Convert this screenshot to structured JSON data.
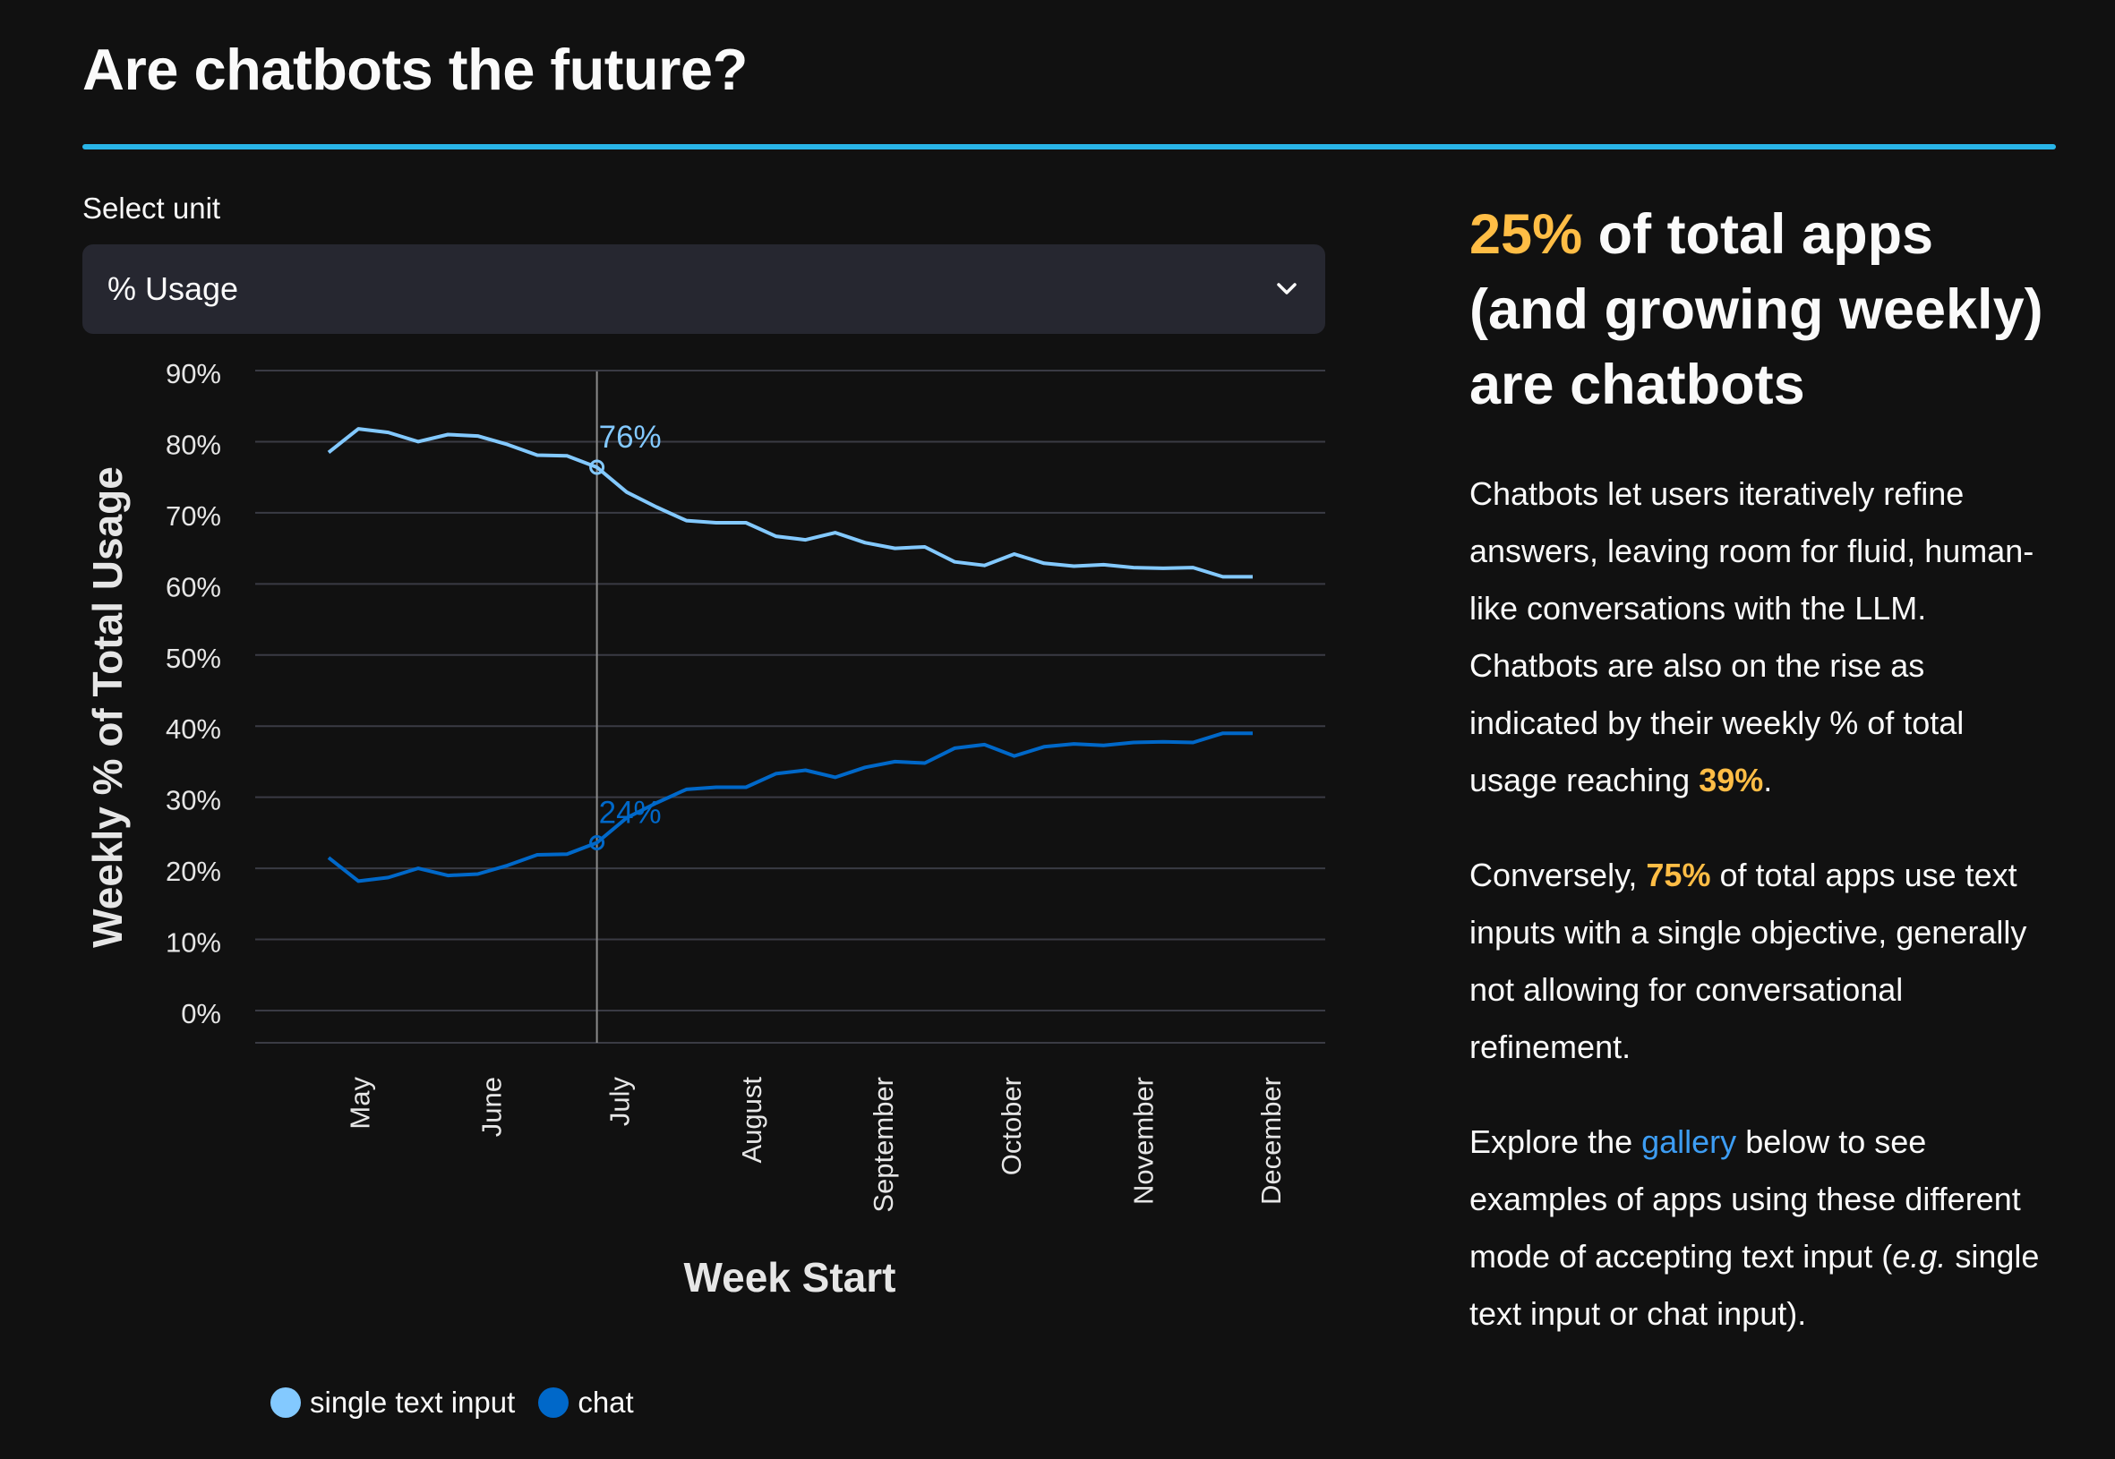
{
  "header": {
    "title": "Are chatbots the future?"
  },
  "select_unit": {
    "label": "Select unit",
    "value": "% Usage"
  },
  "colors": {
    "accent": "#ffbd45",
    "divider": "#29b5e8",
    "single_text_input": "#83c9ff",
    "chat": "#0068c9",
    "link": "#3d9df3"
  },
  "chart_data": {
    "type": "line",
    "xlabel": "Week Start",
    "ylabel": "Weekly % of Total Usage",
    "ylim": [
      0,
      90
    ],
    "y_ticks": [
      "0%",
      "10%",
      "20%",
      "30%",
      "40%",
      "50%",
      "60%",
      "70%",
      "80%",
      "90%"
    ],
    "x_ticks": [
      "May",
      "June",
      "July",
      "August",
      "September",
      "October",
      "November",
      "December"
    ],
    "grid": true,
    "legend_position": "bottom-left",
    "x": [
      "2023-04-24",
      "2023-05-01",
      "2023-05-08",
      "2023-05-15",
      "2023-05-22",
      "2023-05-29",
      "2023-06-05",
      "2023-06-12",
      "2023-06-19",
      "2023-06-26",
      "2023-07-03",
      "2023-07-10",
      "2023-07-17",
      "2023-07-24",
      "2023-07-31",
      "2023-08-07",
      "2023-08-14",
      "2023-08-21",
      "2023-08-28",
      "2023-09-04",
      "2023-09-11",
      "2023-09-18",
      "2023-09-25",
      "2023-10-02",
      "2023-10-09",
      "2023-10-16",
      "2023-10-23",
      "2023-10-30",
      "2023-11-06",
      "2023-11-13",
      "2023-11-20",
      "2023-11-27"
    ],
    "series": [
      {
        "name": "single text input",
        "values": [
          78.5,
          81.8,
          81.3,
          80.0,
          81.0,
          80.8,
          79.6,
          78.1,
          78.0,
          76.4,
          72.9,
          70.8,
          68.9,
          68.6,
          68.6,
          66.7,
          66.2,
          67.2,
          65.8,
          65.0,
          65.2,
          63.1,
          62.6,
          64.2,
          62.9,
          62.5,
          62.7,
          62.3,
          62.2,
          62.3,
          61.0,
          61.0
        ],
        "annotation": "76%"
      },
      {
        "name": "chat",
        "values": [
          21.5,
          18.2,
          18.7,
          20.0,
          19.0,
          19.2,
          20.4,
          21.9,
          22.0,
          23.6,
          27.1,
          29.2,
          31.1,
          31.4,
          31.4,
          33.3,
          33.8,
          32.8,
          34.2,
          35.0,
          34.8,
          36.9,
          37.4,
          35.8,
          37.1,
          37.5,
          37.3,
          37.7,
          37.8,
          37.7,
          39.0,
          39.0
        ],
        "annotation": "24%"
      }
    ],
    "hover_index": 9
  },
  "right_panel": {
    "headline_accent": "25%",
    "headline_rest": " of total apps (and growing weekly) are chatbots",
    "p1_text": "Chatbots let users iteratively refine answers, leaving room for fluid, human-like conversations with the LLM. Chatbots are also on the rise as indicated by their weekly % of total usage reaching ",
    "p1_accent": "39%",
    "p1_end": ".",
    "p2_start": "Conversely, ",
    "p2_accent": "75%",
    "p2_rest": " of total apps use text inputs with a single objective, generally not allowing for conversational refinement.",
    "p3_start": "Explore the ",
    "p3_link": "gallery",
    "p3_mid": " below to see examples of apps using these different mode of accepting text input (",
    "p3_italic": "e.g.",
    "p3_end": " single text input or chat input)."
  }
}
